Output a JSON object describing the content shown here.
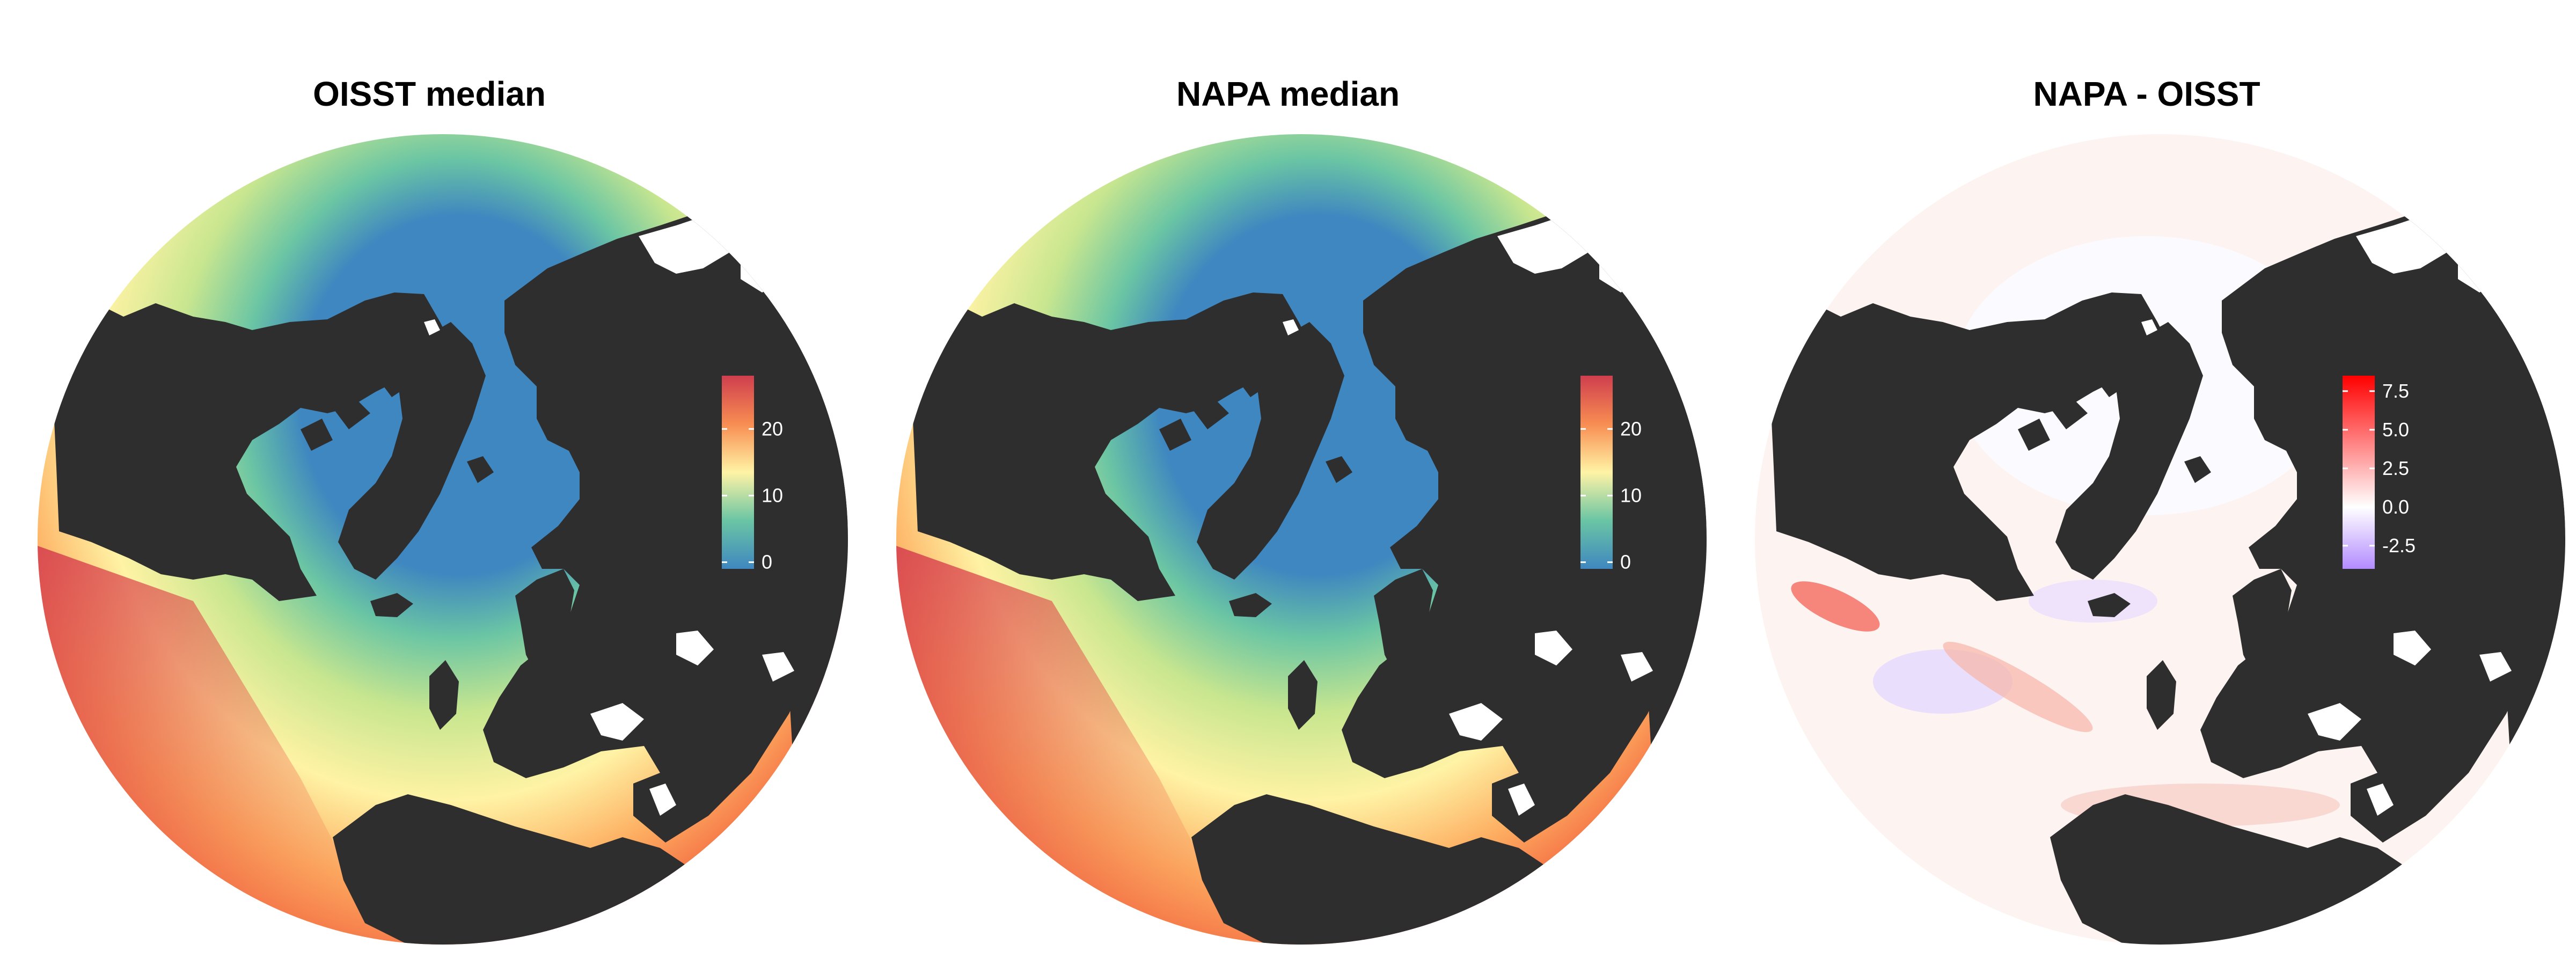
{
  "panels": [
    {
      "title": "OISST median",
      "kind": "sst",
      "colorbar": {
        "min": -1,
        "max": 28,
        "ticks": [
          "0",
          "10",
          "20"
        ],
        "tick_values": [
          0,
          10,
          20
        ],
        "colors": [
          "#3f87c0",
          "#6ac5a4",
          "#fff3a5",
          "#f88d52",
          "#cf3e4e"
        ]
      }
    },
    {
      "title": "NAPA median",
      "kind": "sst",
      "colorbar": {
        "min": -1,
        "max": 28,
        "ticks": [
          "0",
          "10",
          "20"
        ],
        "tick_values": [
          0,
          10,
          20
        ],
        "colors": [
          "#3f87c0",
          "#6ac5a4",
          "#fff3a5",
          "#f88d52",
          "#cf3e4e"
        ]
      }
    },
    {
      "title": "NAPA - OISST",
      "kind": "diff",
      "colorbar": {
        "min": -4,
        "max": 8.5,
        "ticks": [
          "7.5",
          "5.0",
          "2.5",
          "0.0",
          "-2.5"
        ],
        "tick_values": [
          7.5,
          5.0,
          2.5,
          0.0,
          -2.5
        ],
        "colors": [
          "#b38cff",
          "#ffffff",
          "#ff0000"
        ]
      }
    }
  ],
  "colors": {
    "land": "#2e2e2e",
    "background": "#ffffff"
  }
}
